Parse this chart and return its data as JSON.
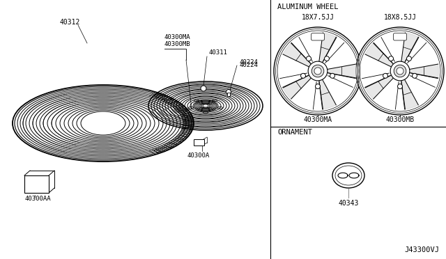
{
  "bg_color": "#ffffff",
  "labels": {
    "tire": "40312",
    "wheel_ma_mb_top": "40300MA",
    "wheel_ma_mb_bot": "40300MB",
    "hub_nut": "40311",
    "valve": "40224",
    "wheel_base": "40300A",
    "small_part": "40300AA",
    "alum_wheel": "ALUMINUM WHEEL",
    "size1": "18X7.5JJ",
    "size2": "18X8.5JJ",
    "part_ma": "40300MA",
    "part_mb": "40300MB",
    "ornament": "ORNAMENT",
    "ornament_part": "40343",
    "diagram_num": "J43300VJ"
  }
}
